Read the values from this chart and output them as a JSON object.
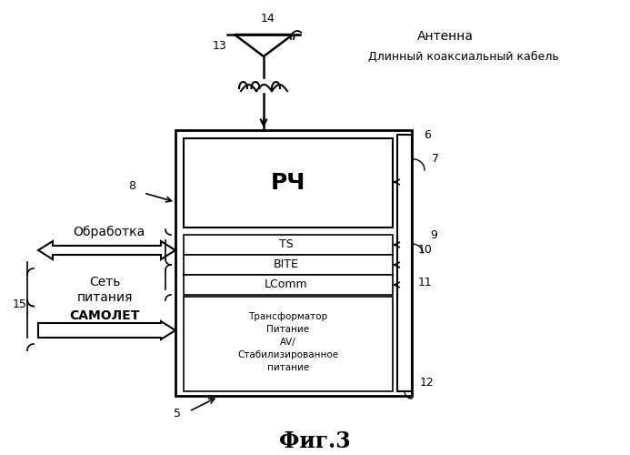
{
  "title": "Фиг.3",
  "background_color": "#ffffff",
  "antenna_label": "Антенна",
  "cable_label": "Длинный коаксиальный кабель",
  "processing_label": "Обработка",
  "network_label_1": "Сеть",
  "network_label_2": "питания",
  "network_label_3": "САМОЛЕТ",
  "rf_label": "РЧ",
  "ts_label": "TS",
  "bite_label": "BITE",
  "lcomm_label": "LComm",
  "psu_label": "Трансформатор\nПитание\nАV/\nСтабилизированное\nпитание",
  "num_14": "14",
  "num_13": "13",
  "num_6": "6",
  "num_7": "7",
  "num_8": "8",
  "num_9": "9",
  "num_10": "10",
  "num_11": "11",
  "num_12": "12",
  "num_15": "15",
  "num_5": "5"
}
